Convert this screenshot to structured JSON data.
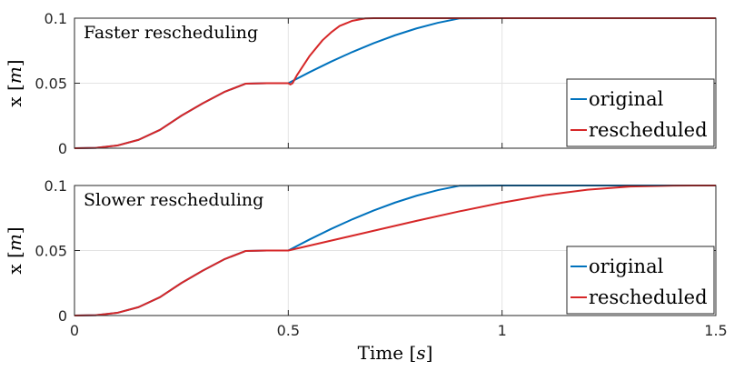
{
  "chart_data": [
    {
      "type": "line",
      "annotation": "Faster rescheduling",
      "ylabel": "x [m]",
      "ylabel_var": "x",
      "ylabel_unit": "m",
      "xlim": [
        0,
        1.5
      ],
      "ylim": [
        0,
        0.1
      ],
      "yticks": [
        "0",
        "0.05",
        "0.1"
      ],
      "xticks": [],
      "grid": true,
      "legend_position": "bottom-right",
      "series": [
        {
          "name": "original",
          "color": "#0072BD",
          "x": [
            0,
            0.05,
            0.1,
            0.15,
            0.2,
            0.25,
            0.3,
            0.35,
            0.4,
            0.45,
            0.5,
            0.55,
            0.6,
            0.65,
            0.7,
            0.75,
            0.8,
            0.85,
            0.9,
            0.95,
            1.0,
            1.05,
            1.1,
            1.2,
            1.3,
            1.4,
            1.5
          ],
          "y": [
            0,
            0.00028,
            0.00208,
            0.00648,
            0.0141,
            0.025,
            0.03456,
            0.04322,
            0.04962,
            0.05,
            0.05,
            0.05853,
            0.06656,
            0.07402,
            0.08083,
            0.08689,
            0.09213,
            0.09645,
            0.09978,
            0.0999,
            0.1,
            0.1,
            0.1,
            0.1,
            0.1,
            0.1,
            0.1
          ]
        },
        {
          "name": "rescheduled",
          "color": "#D62728",
          "x": [
            0,
            0.05,
            0.1,
            0.15,
            0.2,
            0.25,
            0.3,
            0.35,
            0.4,
            0.45,
            0.5,
            0.505,
            0.51,
            0.52,
            0.55,
            0.58,
            0.6,
            0.62,
            0.65,
            0.68,
            0.7,
            0.8,
            1.0,
            1.5
          ],
          "y": [
            0,
            0.00028,
            0.00208,
            0.00648,
            0.0141,
            0.025,
            0.03456,
            0.04322,
            0.04962,
            0.05,
            0.05,
            0.049,
            0.05,
            0.056,
            0.071,
            0.083,
            0.089,
            0.094,
            0.098,
            0.0998,
            0.1,
            0.1,
            0.1,
            0.1
          ]
        }
      ]
    },
    {
      "type": "line",
      "annotation": "Slower rescheduling",
      "ylabel": "x [m]",
      "ylabel_var": "x",
      "ylabel_unit": "m",
      "xlabel": "Time [s]",
      "xlabel_var": "Time",
      "xlabel_unit": "s",
      "xlim": [
        0,
        1.5
      ],
      "ylim": [
        0,
        0.1
      ],
      "yticks": [
        "0",
        "0.05",
        "0.1"
      ],
      "xticks": [
        "0",
        "0.5",
        "1",
        "1.5"
      ],
      "grid": true,
      "legend_position": "bottom-right",
      "series": [
        {
          "name": "original",
          "color": "#0072BD",
          "x": [
            0,
            0.05,
            0.1,
            0.15,
            0.2,
            0.25,
            0.3,
            0.35,
            0.4,
            0.45,
            0.5,
            0.55,
            0.6,
            0.65,
            0.7,
            0.75,
            0.8,
            0.85,
            0.9,
            0.95,
            1.0,
            1.05,
            1.1,
            1.2,
            1.3,
            1.4,
            1.5
          ],
          "y": [
            0,
            0.00028,
            0.00208,
            0.00648,
            0.0141,
            0.025,
            0.03456,
            0.04322,
            0.04962,
            0.05,
            0.05,
            0.05853,
            0.06656,
            0.07402,
            0.08083,
            0.08689,
            0.09213,
            0.09645,
            0.09978,
            0.0999,
            0.1,
            0.1,
            0.1,
            0.1,
            0.1,
            0.1,
            0.1
          ]
        },
        {
          "name": "rescheduled",
          "color": "#D62728",
          "x": [
            0,
            0.05,
            0.1,
            0.15,
            0.2,
            0.25,
            0.3,
            0.35,
            0.4,
            0.45,
            0.5,
            0.6,
            0.7,
            0.8,
            0.9,
            1.0,
            1.1,
            1.2,
            1.3,
            1.4,
            1.45,
            1.5
          ],
          "y": [
            0,
            0.00028,
            0.00208,
            0.00648,
            0.0141,
            0.025,
            0.03456,
            0.04322,
            0.04962,
            0.05,
            0.05,
            0.0576,
            0.0652,
            0.0728,
            0.0801,
            0.0868,
            0.0926,
            0.0968,
            0.0992,
            0.0999,
            0.1,
            0.1
          ]
        }
      ]
    }
  ]
}
